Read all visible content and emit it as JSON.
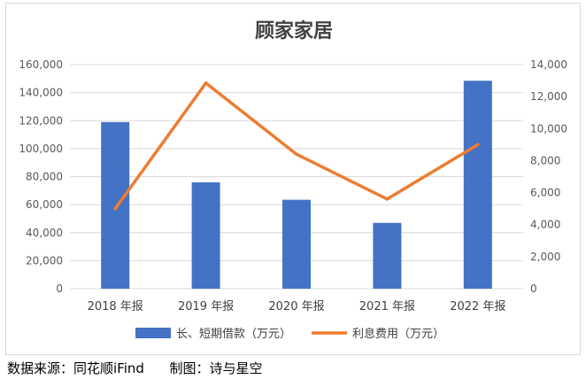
{
  "chart_data": {
    "type": "bar+line",
    "title": "顾家家居",
    "categories": [
      "2018 年报",
      "2019 年报",
      "2020 年报",
      "2021 年报",
      "2022 年报"
    ],
    "series": [
      {
        "name": "长、短期借款（万元）",
        "type": "bar",
        "axis": "left",
        "color": "#4472c4",
        "values": [
          119000,
          76000,
          63500,
          47000,
          148500
        ]
      },
      {
        "name": "利息费用（万元）",
        "type": "line",
        "axis": "right",
        "color": "#ed7d31",
        "values": [
          5000,
          12850,
          8400,
          5600,
          9000
        ]
      }
    ],
    "y_left": {
      "min": 0,
      "max": 160000,
      "step": 20000,
      "ticks": [
        "0",
        "20,000",
        "40,000",
        "60,000",
        "80,000",
        "100,000",
        "120,000",
        "140,000",
        "160,000"
      ]
    },
    "y_right": {
      "min": 0,
      "max": 14000,
      "step": 2000,
      "ticks": [
        "0",
        "2,000",
        "4,000",
        "6,000",
        "8,000",
        "10,000",
        "12,000",
        "14,000"
      ]
    },
    "grid": true,
    "legend_position": "bottom"
  },
  "footer": {
    "source": "数据来源：同花顺iFind",
    "author": "制图：诗与星空"
  }
}
